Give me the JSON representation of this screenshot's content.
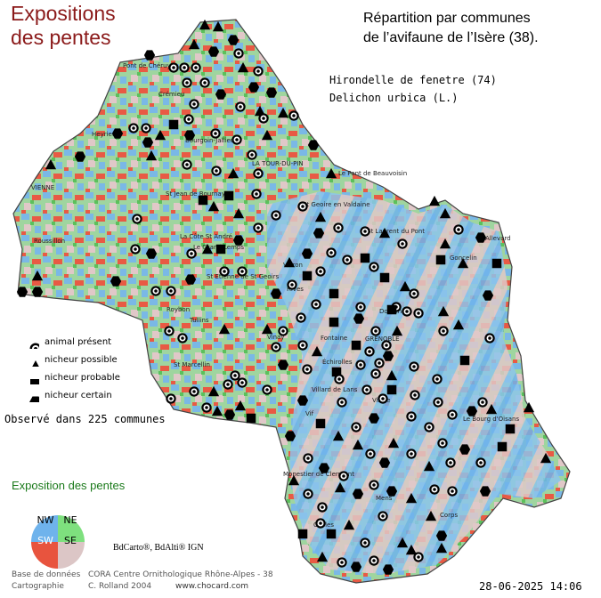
{
  "map": {
    "title": "Expositions des pentes",
    "subtitle_line1": "Répartition par communes",
    "subtitle_line2": "de l’avifaune de l’Isère (38).",
    "species_common": "Hirondelle de fenetre  (74)",
    "species_latin": "Delichon urbica (L.)"
  },
  "towns": [
    "Pont de Chéruy",
    "Crémieu",
    "Heyrieux",
    "Bourgoin-Jallieu",
    "LA TOUR-DU-PIN",
    "Le Pont de Beauvoisin",
    "VIENNE",
    "St Jean de Bournay",
    "St Geoire en Valdaine",
    "La Côte St André",
    "Le Grand Lemps",
    "Roussillon",
    "St Etienne de St Geoirs",
    "St Laurent du Pont",
    "Goncelin",
    "Allevard",
    "Voiron",
    "Rives",
    "Roybon",
    "Tullins",
    "Vinay",
    "St Marcellin",
    "GRENOBLE",
    "Domène",
    "Fontaine",
    "Échirolles",
    "Villard de Lans",
    "Vif",
    "Vizille",
    "Le Bourg d'Oisans",
    "Monestier de Clermont",
    "Mens",
    "Corps",
    "Clelles"
  ],
  "legend": {
    "present": "animal présent",
    "possible": "nicheur possible",
    "probable": "nicheur probable",
    "certain": "nicheur certain"
  },
  "observed": "Observé dans 225 communes",
  "slope_exposure": {
    "title": "Exposition des pentes",
    "nw": "NW",
    "ne": "NE",
    "sw": "SW",
    "se": "SE",
    "colors": {
      "nw": "#6fb3ec",
      "ne": "#7ee07e",
      "sw": "#e8543e",
      "se": "#dcc6c6"
    }
  },
  "source": "BdCarto®, BdAlti® IGN",
  "credits": {
    "db_label": "Base de données",
    "db_value": "CORA Centre Ornithologique Rhône-Alpes - 38",
    "carto_label": "Cartographie",
    "carto_value": "C. Rolland 2004",
    "website": "www.chocard.com"
  },
  "date": "28-06-2025 14:06",
  "colors": {
    "map_green": "#6cc86c",
    "map_blue": "#7ab8e6",
    "map_red": "#e85a44",
    "map_pink": "#e0c8c8",
    "map_bg": "#aad8aa"
  }
}
